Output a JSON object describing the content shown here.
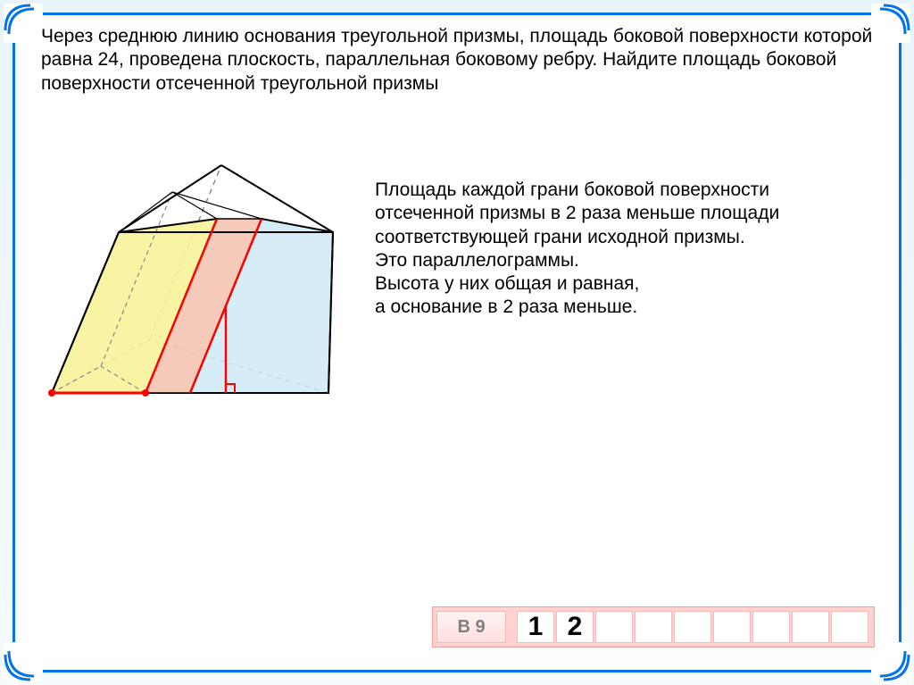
{
  "frame": {
    "border_color": "#0074e8",
    "bg_gradient_top": "#e8f4fb",
    "bg_gradient_bottom": "#f5fbff"
  },
  "problem": {
    "text": "Через среднюю линию основания треугольной призмы, площадь боковой поверхности которой равна 24, проведена плоскость, параллельная боковому ребру. Найдите площадь боковой поверхности отсеченной треугольной призмы"
  },
  "explanation": {
    "text": "Площадь каждой грани боковой поверхности отсеченной призмы в 2 раза меньше площади соответствующей грани исходной призмы.\nЭто параллелограммы.\nВысота у них общая и равная,\nа основание в 2 раза меньше."
  },
  "diagram": {
    "colors": {
      "yellow_face": "#f8f29a",
      "blue_face": "#cfe9f4",
      "pink_face": "#f4c4b4",
      "outline": "#000000",
      "highlight": "#ff0000",
      "dashed": "#808080"
    }
  },
  "answer": {
    "label": "В 9",
    "cells": [
      "1",
      "2",
      "",
      "",
      "",
      "",
      "",
      "",
      ""
    ]
  },
  "styles": {
    "problem_fontsize": 21,
    "explanation_fontsize": 21,
    "answer_fontsize": 30,
    "answer_row_bg": "#ffd1d1",
    "answer_cell_border": "#f7baba"
  }
}
